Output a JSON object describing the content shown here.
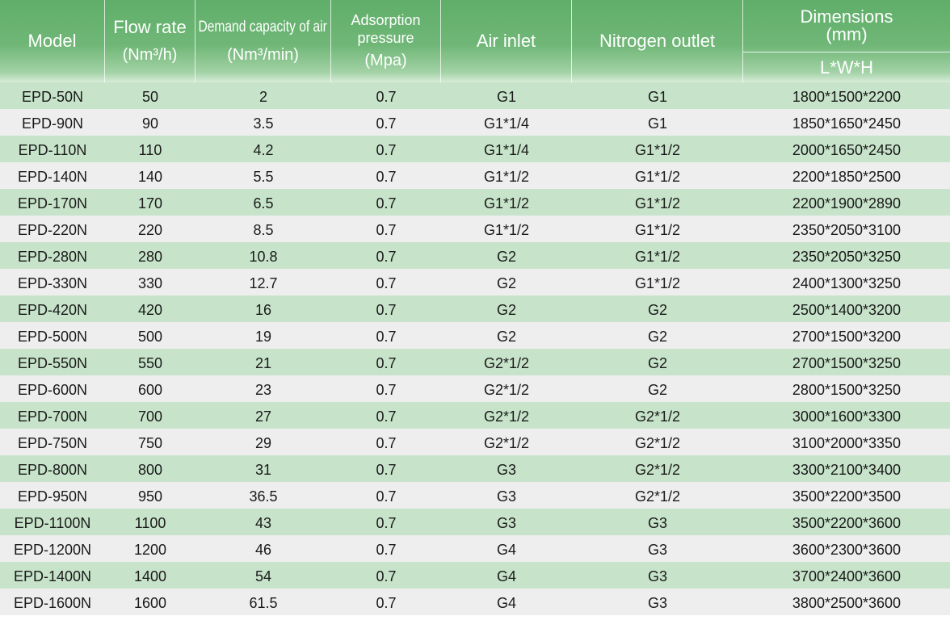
{
  "header": {
    "model": "Model",
    "flow_rate": "Flow rate",
    "flow_rate_unit": "(Nm³/h)",
    "demand": "Demand capacity of air",
    "demand_unit": "(Nm³/min)",
    "adsorption_line1": "Adsorption",
    "adsorption_line2": "pressure",
    "adsorption_unit": "(Mpa)",
    "air_inlet": "Air inlet",
    "nitrogen_outlet": "Nitrogen outlet",
    "dimensions": "Dimensions",
    "dimensions_unit": "(mm)",
    "dimensions_sub": "L*W*H"
  },
  "colors": {
    "header_green": "#6bb572",
    "row_green": "#c7e4ca",
    "row_gray": "#eeeeee"
  },
  "rows": [
    [
      "EPD-50N",
      "50",
      "2",
      "0.7",
      "G1",
      "G1",
      "1800*1500*2200"
    ],
    [
      "EPD-90N",
      "90",
      "3.5",
      "0.7",
      "G1*1/4",
      "G1",
      "1850*1650*2450"
    ],
    [
      "EPD-110N",
      "110",
      "4.2",
      "0.7",
      "G1*1/4",
      "G1*1/2",
      "2000*1650*2450"
    ],
    [
      "EPD-140N",
      "140",
      "5.5",
      "0.7",
      "G1*1/2",
      "G1*1/2",
      "2200*1850*2500"
    ],
    [
      "EPD-170N",
      "170",
      "6.5",
      "0.7",
      "G1*1/2",
      "G1*1/2",
      "2200*1900*2890"
    ],
    [
      "EPD-220N",
      "220",
      "8.5",
      "0.7",
      "G1*1/2",
      "G1*1/2",
      "2350*2050*3100"
    ],
    [
      "EPD-280N",
      "280",
      "10.8",
      "0.7",
      "G2",
      "G1*1/2",
      "2350*2050*3250"
    ],
    [
      "EPD-330N",
      "330",
      "12.7",
      "0.7",
      "G2",
      "G1*1/2",
      "2400*1300*3250"
    ],
    [
      "EPD-420N",
      "420",
      "16",
      "0.7",
      "G2",
      "G2",
      "2500*1400*3200"
    ],
    [
      "EPD-500N",
      "500",
      "19",
      "0.7",
      "G2",
      "G2",
      "2700*1500*3200"
    ],
    [
      "EPD-550N",
      "550",
      "21",
      "0.7",
      "G2*1/2",
      "G2",
      "2700*1500*3250"
    ],
    [
      "EPD-600N",
      "600",
      "23",
      "0.7",
      "G2*1/2",
      "G2",
      "2800*1500*3250"
    ],
    [
      "EPD-700N",
      "700",
      "27",
      "0.7",
      "G2*1/2",
      "G2*1/2",
      "3000*1600*3300"
    ],
    [
      "EPD-750N",
      "750",
      "29",
      "0.7",
      "G2*1/2",
      "G2*1/2",
      "3100*2000*3350"
    ],
    [
      "EPD-800N",
      "800",
      "31",
      "0.7",
      "G3",
      "G2*1/2",
      "3300*2100*3400"
    ],
    [
      "EPD-950N",
      "950",
      "36.5",
      "0.7",
      "G3",
      "G2*1/2",
      "3500*2200*3500"
    ],
    [
      "EPD-1100N",
      "1100",
      "43",
      "0.7",
      "G3",
      "G3",
      "3500*2200*3600"
    ],
    [
      "EPD-1200N",
      "1200",
      "46",
      "0.7",
      "G4",
      "G3",
      "3600*2300*3600"
    ],
    [
      "EPD-1400N",
      "1400",
      "54",
      "0.7",
      "G4",
      "G3",
      "3700*2400*3600"
    ],
    [
      "EPD-1600N",
      "1600",
      "61.5",
      "0.7",
      "G4",
      "G3",
      "3800*2500*3600"
    ]
  ]
}
